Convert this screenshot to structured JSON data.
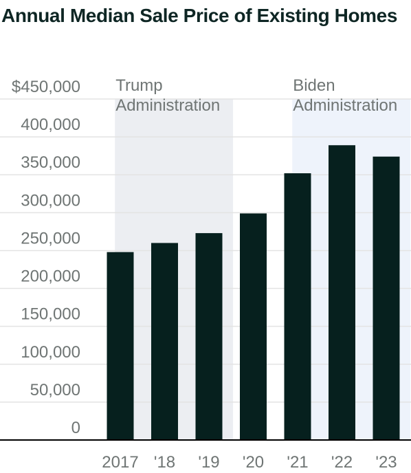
{
  "chart_data": {
    "type": "bar",
    "title": "Annual Median Sale Price of Existing Homes",
    "categories": [
      "2017",
      "'18",
      "'19",
      "'20",
      "'21",
      "'22",
      "'23"
    ],
    "values": [
      248000,
      260000,
      273000,
      299000,
      352000,
      389000,
      374000
    ],
    "ylim": [
      0,
      450000
    ],
    "y_ticks": [
      {
        "value": 0,
        "label": "0"
      },
      {
        "value": 50000,
        "label": "50,000"
      },
      {
        "value": 100000,
        "label": "100,000"
      },
      {
        "value": 150000,
        "label": "150,000"
      },
      {
        "value": 200000,
        "label": "200,000"
      },
      {
        "value": 250000,
        "label": "250,000"
      },
      {
        "value": 300000,
        "label": "300,000"
      },
      {
        "value": 350000,
        "label": "350,000"
      },
      {
        "value": 400000,
        "label": "400,000"
      },
      {
        "value": 450000,
        "label": "$450,000"
      }
    ],
    "grid": true,
    "annotations": [
      {
        "line1": "Trump",
        "line2": "Administration",
        "start": "2017",
        "end": "'19"
      },
      {
        "line1": "Biden",
        "line2": "Administration",
        "start": "'21",
        "end": "'23"
      }
    ],
    "colors": {
      "bar": "#06201e",
      "trump_band": "#eceef2",
      "biden_band": "#eef3fb",
      "grid": "#e3e3e3",
      "axis": "#000000",
      "text": "#6f7574",
      "title": "#0e2624"
    }
  }
}
